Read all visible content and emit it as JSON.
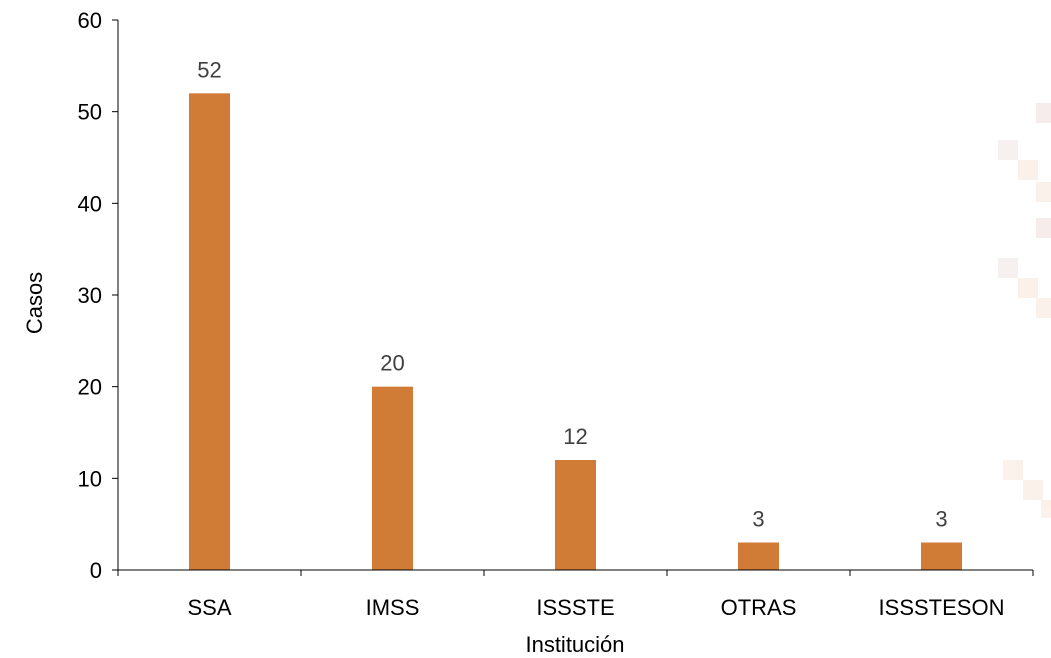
{
  "chart_data": {
    "type": "bar",
    "categories": [
      "SSA",
      "IMSS",
      "ISSSTE",
      "OTRAS",
      "ISSSTESON"
    ],
    "values": [
      52,
      20,
      12,
      3,
      3
    ],
    "data_labels": [
      "52",
      "20",
      "12",
      "3",
      "3"
    ],
    "title": "",
    "xlabel": "Institución",
    "ylabel": "Casos",
    "ylim": [
      0,
      60
    ],
    "yticks": [
      0,
      10,
      20,
      30,
      40,
      50,
      60
    ],
    "ytick_labels": [
      "0",
      "10",
      "20",
      "30",
      "40",
      "50",
      "60"
    ],
    "grid": false,
    "legend": "none",
    "bar_color": "#d07b36"
  }
}
